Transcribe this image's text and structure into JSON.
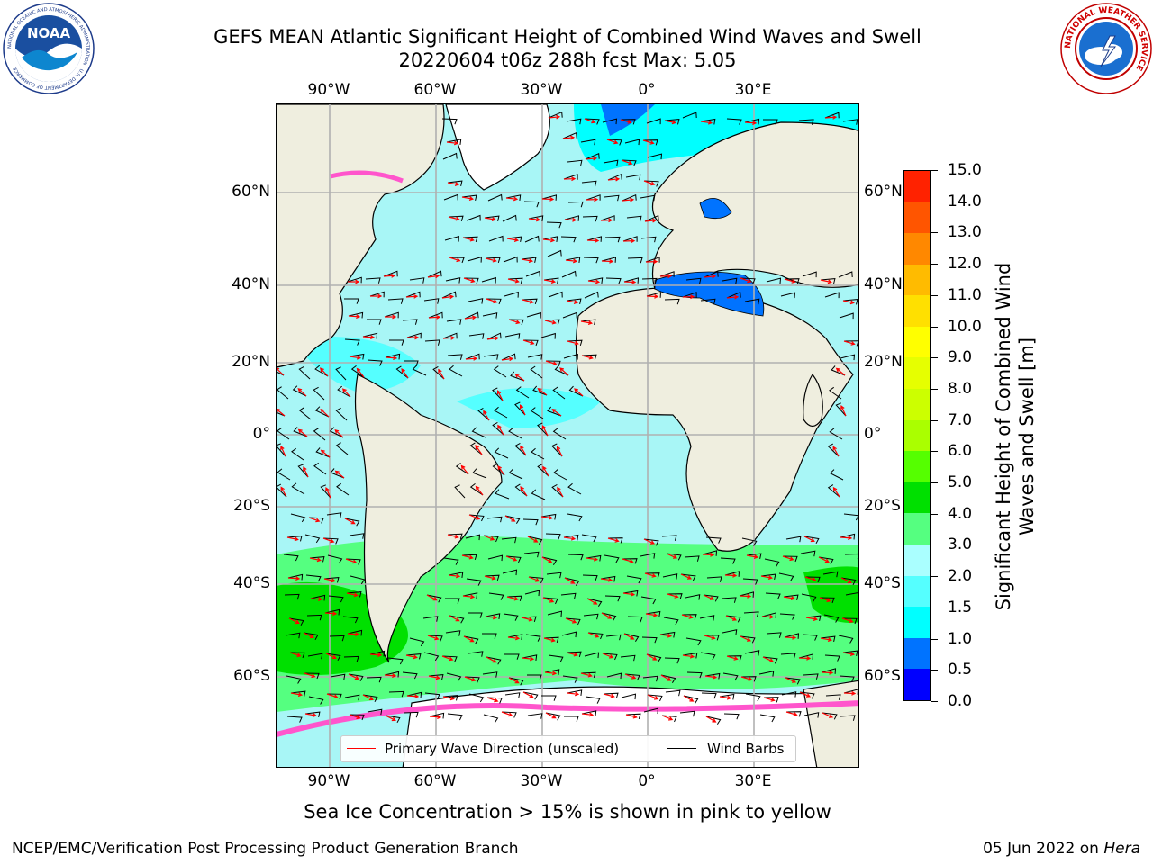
{
  "header": {
    "title_line1": "GEFS MEAN Atlantic Significant Height of Combined Wind Waves and Swell",
    "title_line2": "20220604 t06z 288h fcst   Max: 5.05"
  },
  "logos": {
    "left": "noaa-logo",
    "left_text": "NOAA",
    "left_ring_text": "NATIONAL OCEANIC AND ATMOSPHERIC ADMINISTRATION · U.S. DEPARTMENT OF COMMERCE",
    "right": "nws-logo",
    "right_ring_text": "NATIONAL WEATHER SERVICE"
  },
  "map": {
    "projection": "Mercator",
    "extent_lon": [
      -100,
      40
    ],
    "extent_lat": [
      -77,
      80
    ],
    "ocean_color": "#a8f6f6",
    "land_color": "#efeedf",
    "ice_color": "#ff55cc",
    "x_ticks": [
      "90°W",
      "60°W",
      "30°W",
      "0°",
      "30°E"
    ],
    "y_ticks_left": [
      "60°N",
      "40°N",
      "20°N",
      "0°",
      "20°S",
      "40°S",
      "60°S"
    ],
    "y_ticks_right": [
      "60°N",
      "40°N",
      "20°N",
      "0°",
      "20°S",
      "40°S",
      "60°S"
    ]
  },
  "legend": {
    "wave_label": "Primary Wave Direction (unscaled)",
    "wave_color": "#ff0000",
    "barb_label": "Wind Barbs",
    "barb_color": "#000000"
  },
  "colorbar": {
    "title": "Significant Height of Combined Wind Waves and Swell [m]",
    "tick_labels": [
      "0.0",
      "0.5",
      "1.0",
      "1.5",
      "2.0",
      "3.0",
      "4.0",
      "5.0",
      "6.0",
      "7.0",
      "8.0",
      "9.0",
      "10.0",
      "11.0",
      "12.0",
      "13.0",
      "14.0",
      "15.0"
    ],
    "colors": [
      "#0000ff",
      "#0073ff",
      "#00ffff",
      "#55ffff",
      "#aaffff",
      "#55ff80",
      "#00e000",
      "#55ff00",
      "#aaff00",
      "#ccff00",
      "#e6ff00",
      "#ffff00",
      "#ffe000",
      "#ffbb00",
      "#ff8800",
      "#ff5500",
      "#ff2200"
    ]
  },
  "notes": {
    "sea_ice": "Sea Ice Concentration > 15% is shown in pink to yellow"
  },
  "footer": {
    "left": "NCEP/EMC/Verification Post Processing Product Generation Branch",
    "date": "05 Jun 2022 on",
    "host": "Hera"
  }
}
